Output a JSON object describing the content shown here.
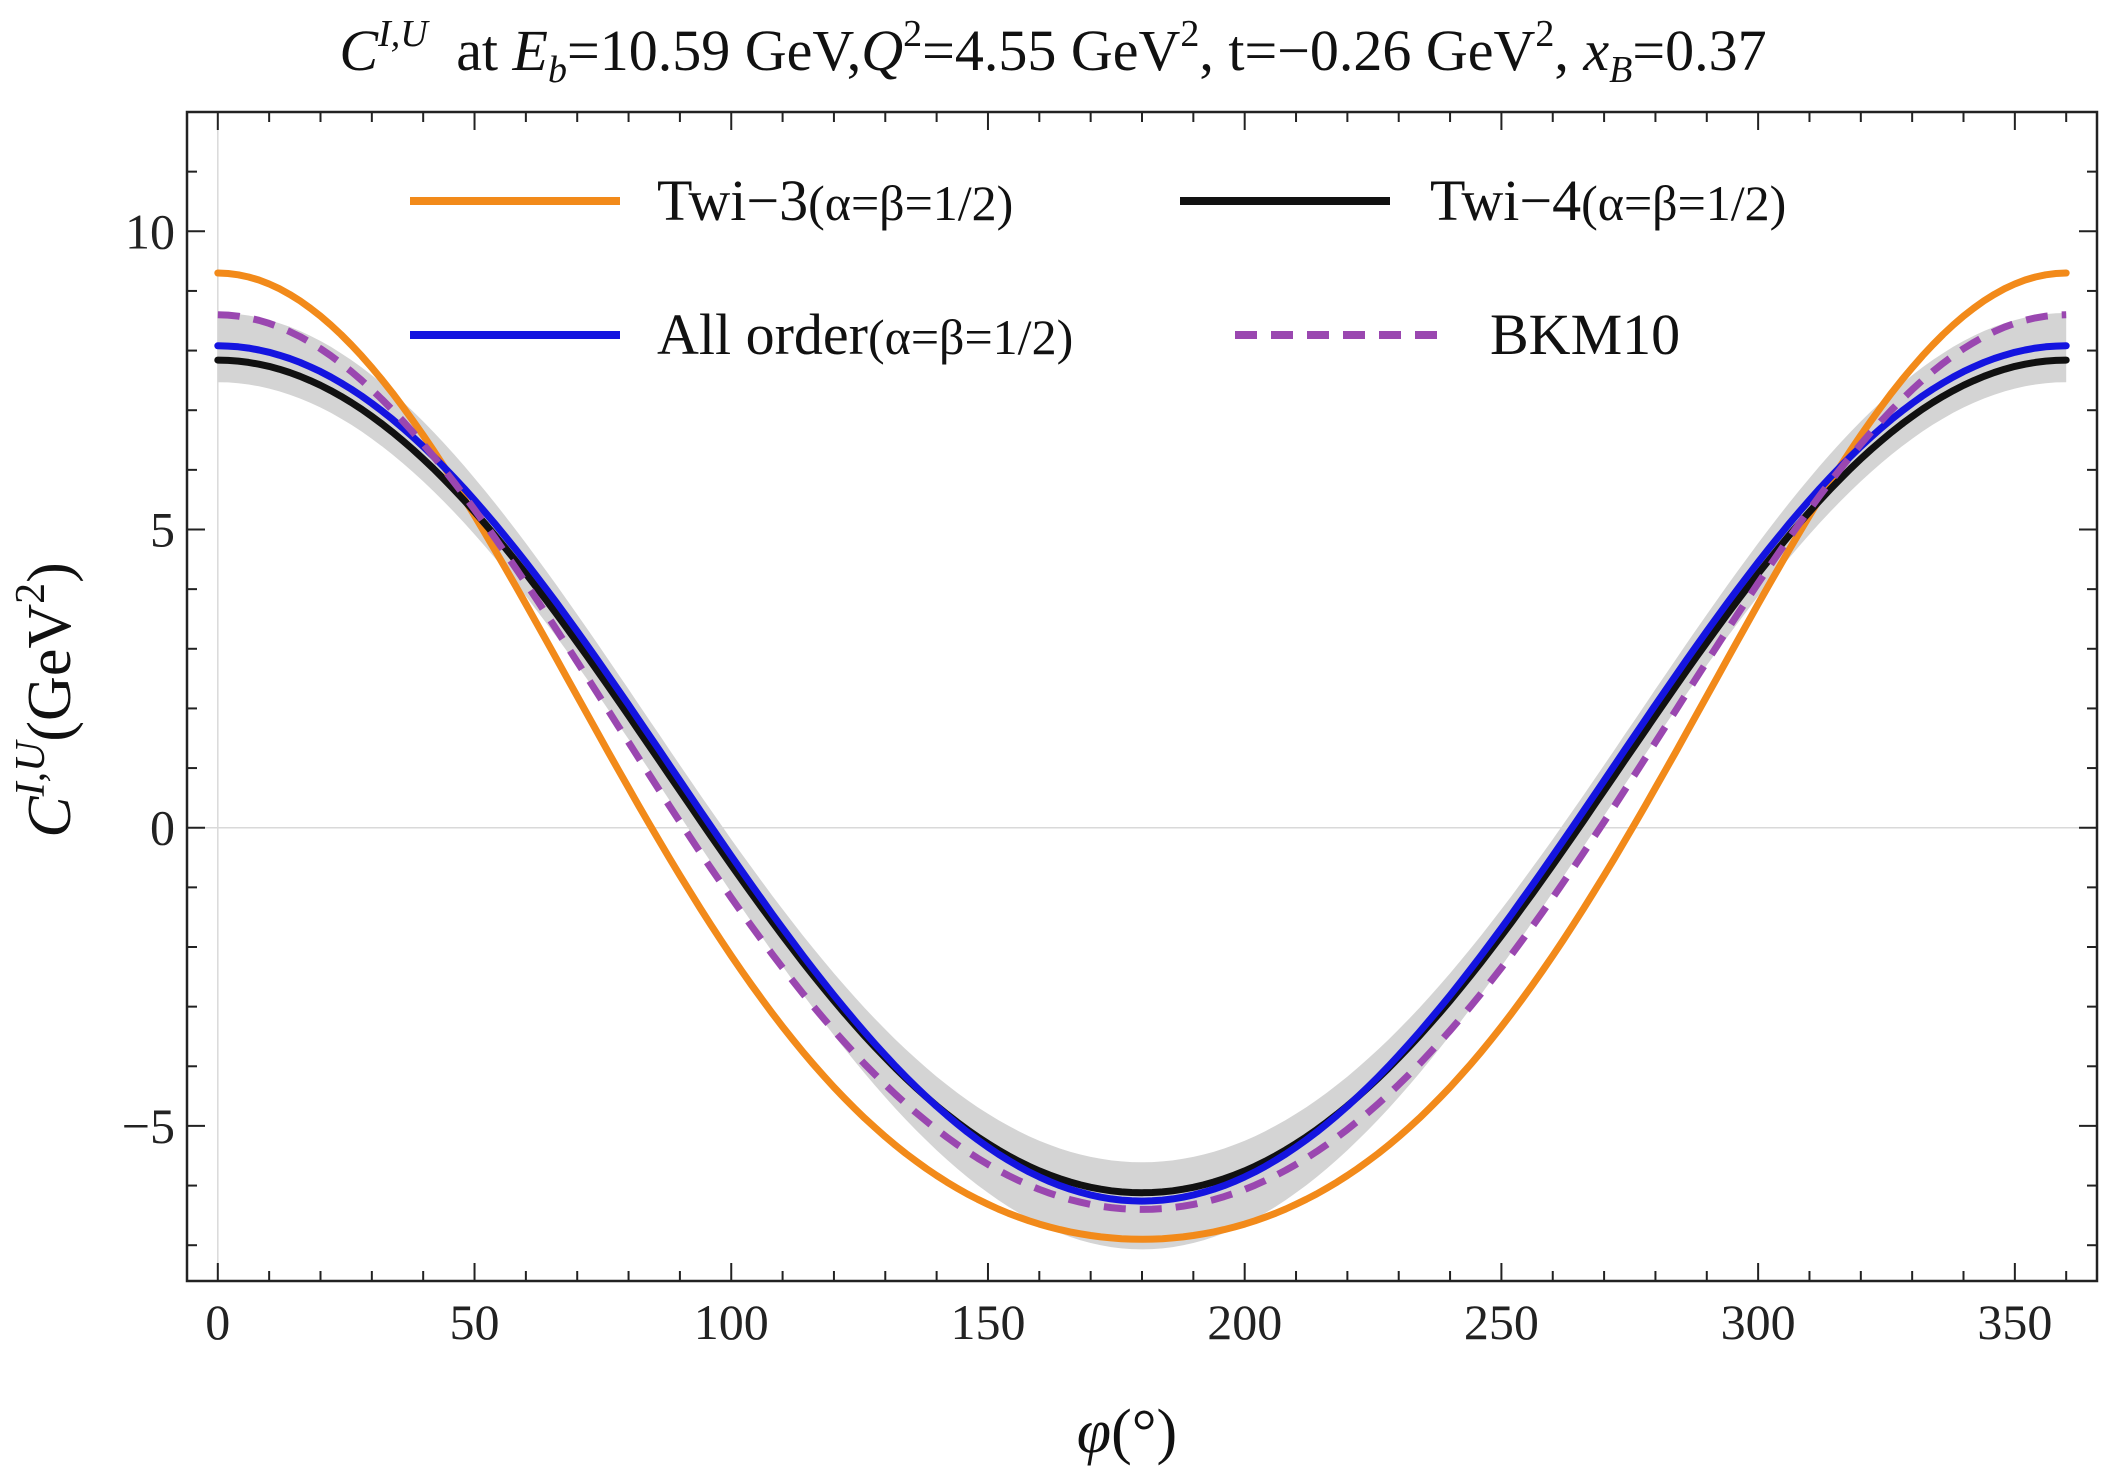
{
  "chart_data": {
    "type": "line",
    "title": {
      "prefix": "C",
      "prefix_sup": "I,U",
      "eb_var": "E",
      "eb_sub": "b",
      "eb_value": "=10.59 GeV,",
      "q_var": "Q",
      "q_sup": "2",
      "q_value": "=4.55 GeV",
      "q_unit_sup": "2",
      "t_text": ", t=−0.26 GeV",
      "t_unit_sup": "2",
      "x_sep": ", ",
      "x_var": "x",
      "x_sub": "B",
      "x_value": "=0.37"
    },
    "xlabel": {
      "var": "φ",
      "unit": "(°)"
    },
    "ylabel": {
      "var": "C",
      "sup": "I,U",
      "unit": "(GeV",
      "unit_sup": "2",
      "unit_close": ")"
    },
    "xlim": [
      -6,
      366
    ],
    "ylim": [
      -7.6,
      12
    ],
    "x_ticks": [
      0,
      50,
      100,
      150,
      200,
      250,
      300,
      350
    ],
    "x_tick_labels": [
      "0",
      "50",
      "100",
      "150",
      "200",
      "250",
      "300",
      "350"
    ],
    "y_ticks": [
      -5,
      0,
      5,
      10
    ],
    "y_tick_labels": [
      "−5",
      "0",
      "5",
      "10"
    ],
    "series": [
      {
        "name": "Twi-3",
        "label": "Twi−3",
        "label_sub": "(α=β=1/2)",
        "color": "#F28A1A",
        "dash": "",
        "c0": 0.2,
        "c1": 8.1,
        "c2": 1.0,
        "c3": 0.0
      },
      {
        "name": "Twi-4",
        "label": "Twi−4",
        "label_sub": "(α=β=1/2)",
        "color": "#111111",
        "dash": "",
        "c0": 0.74,
        "c1": 7.04,
        "c2": 0.12,
        "c3": -0.06
      },
      {
        "name": "All order",
        "label": "All order",
        "label_sub": "(α=β=1/2)",
        "color": "#1414E0",
        "dash": "",
        "c0": 0.85,
        "c1": 7.2,
        "c2": 0.06,
        "c3": -0.03
      },
      {
        "name": "BKM10",
        "label": "BKM10",
        "label_sub": "",
        "color": "#9A47B0",
        "dash": "22,14",
        "c0": 0.6,
        "c1": 7.5,
        "c2": 0.5,
        "c3": 0.0
      }
    ],
    "band": {
      "name": "uncertainty band",
      "color": "#D4D4D4",
      "upper": {
        "c0": 1.28,
        "c1": 7.15,
        "c2": 0.23,
        "c3": -0.03
      },
      "lower": {
        "c0": 0.2,
        "c1": 7.3,
        "c2": 0.0,
        "c3": -0.03
      }
    },
    "grid": false,
    "legend_position": "top-center"
  }
}
